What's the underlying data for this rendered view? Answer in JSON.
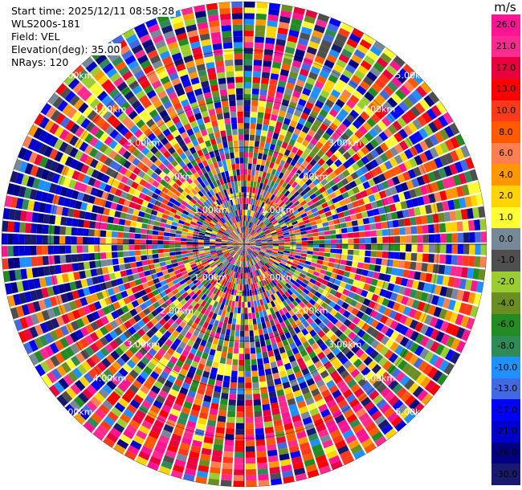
{
  "header": {
    "start_time": "Start time: 2025/12/11 08:58:28",
    "instrument": "WLS200s-181",
    "field": "Field: VEL",
    "elevation": "Elevation(deg): 35.00",
    "nrays": "NRays: 120"
  },
  "plot": {
    "rays": 120,
    "gates": 42,
    "max_range_km": 5.0,
    "ring_labels": [
      "1.00km",
      "2.00km",
      "3.00km",
      "4.00km",
      "5.00km"
    ]
  },
  "colorbar": {
    "unit": "m/s",
    "labels": [
      "26.0",
      "21.0",
      "17.0",
      "13.0",
      "10.0",
      "8.0",
      "6.0",
      "4.0",
      "2.0",
      "1.0",
      "0.0",
      "-1.0",
      "-2.0",
      "-4.0",
      "-6.0",
      "-8.0",
      "-10.0",
      "-13.0",
      "-17.0",
      "-21.0",
      "-26.0",
      "-30.0"
    ],
    "colors": [
      "#ff1493",
      "#ff2a8f",
      "#e8003f",
      "#ff0000",
      "#ff3a1a",
      "#ff5a00",
      "#ff7f50",
      "#ff9800",
      "#ffd400",
      "#ffff33",
      "#778899",
      "#4f4f4f",
      "#9acd32",
      "#6b8e23",
      "#228b22",
      "#2e8b57",
      "#1e90ff",
      "#4169e1",
      "#0000ff",
      "#0000cd",
      "#000080",
      "#191970"
    ]
  }
}
